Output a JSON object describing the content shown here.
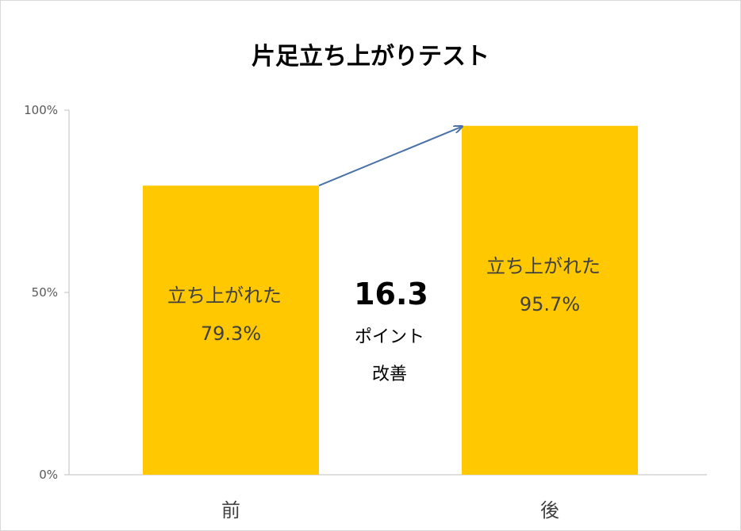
{
  "chart_data": {
    "type": "bar",
    "title": "片足立ち上がりテスト",
    "categories": [
      "前",
      "後"
    ],
    "values": [
      79.3,
      95.7
    ],
    "ylim": [
      0,
      100
    ],
    "y_ticks": [
      "0%",
      "50%",
      "100%"
    ],
    "y_tick_values": [
      0,
      50,
      100
    ],
    "bar_labels": [
      {
        "line1": "立ち上がれた",
        "line2": "79.3%"
      },
      {
        "line1": "立ち上がれた",
        "line2": "95.7%"
      }
    ],
    "annotation": {
      "value": "16.3",
      "line1": "ポイント",
      "line2": "改善"
    },
    "grid": false,
    "legend": "none"
  },
  "colors": {
    "bar": "#FFC800",
    "arrow": "#4a72a8",
    "axis": "#bfbfbf"
  }
}
